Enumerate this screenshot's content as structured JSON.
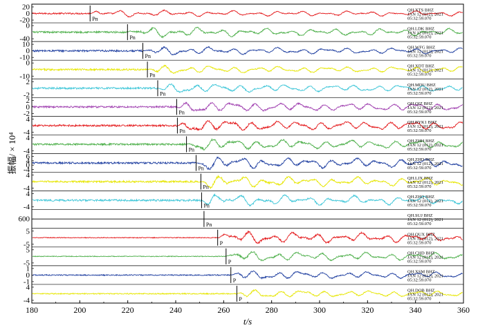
{
  "chart_data": {
    "type": "line",
    "xlabel": "t/s",
    "ylabel": "振幅/ × 10⁴",
    "xlim": [
      180,
      360
    ],
    "xticks": [
      "180",
      "200",
      "220",
      "240",
      "260",
      "280",
      "300",
      "320",
      "340",
      "360"
    ],
    "date_line": "JAN 12 (012), 2021",
    "time_line": "05:32:59.070",
    "series": [
      {
        "name": "QH.XTS BHZ",
        "color": "#e41a1c",
        "phase": "Pn",
        "pick": 204.3,
        "yticks": [
          "20",
          "0",
          "-20"
        ],
        "amp": 1.0,
        "noise": 0.04,
        "burst": 1.0
      },
      {
        "name": "QH.LDK BHZ",
        "color": "#4daf4a",
        "phase": "Pn",
        "pick": 219.9,
        "yticks": [
          "0",
          "-40"
        ],
        "amp": 1.0,
        "noise": 0.05,
        "burst": 1.4
      },
      {
        "name": "QH.WFG BHZ",
        "color": "#1f3fa0",
        "phase": "Pn",
        "pick": 226.3,
        "yticks": [
          "10",
          "0",
          "-10"
        ],
        "amp": 1.0,
        "noise": 0.05,
        "burst": 1.2
      },
      {
        "name": "QH.XDT BHZ",
        "color": "#e6e600",
        "phase": "Pn",
        "pick": 228.2,
        "yticks": [
          "0",
          "-10"
        ],
        "amp": 1.0,
        "noise": 0.05,
        "burst": 1.2
      },
      {
        "name": "QH.MDU BHZ",
        "color": "#3ec6d8",
        "phase": "Pn",
        "pick": 232.5,
        "yticks": [
          "2",
          "-2"
        ],
        "amp": 1.0,
        "noise": 0.05,
        "burst": 1.4
      },
      {
        "name": "QH.QIZ BHZ",
        "color": "#a040b0",
        "phase": "Pn",
        "pick": 240.4,
        "yticks": [
          "2",
          "0",
          "-2"
        ],
        "amp": 1.0,
        "noise": 0.05,
        "burst": 1.6
      },
      {
        "name": "QH.BYK1 BHZ",
        "color": "#e41a1c",
        "phase": "Pn",
        "pick": 240.7,
        "yticks": [
          "4",
          "-4"
        ],
        "amp": 1.0,
        "noise": 0.05,
        "burst": 1.8
      },
      {
        "name": "QH.ZHH BHZ",
        "color": "#4daf4a",
        "phase": "Pn",
        "pick": 244.5,
        "yticks": [
          "4",
          "-4"
        ],
        "amp": 1.0,
        "noise": 0.05,
        "burst": 1.7
      },
      {
        "name": "QH.ZHD BHZ",
        "color": "#1f3fa0",
        "phase": "Pn",
        "pick": 248.5,
        "yticks": [
          "6",
          "4",
          "0",
          "-4"
        ],
        "amp": 1.0,
        "noise": 0.05,
        "burst": 1.8
      },
      {
        "name": "QH.LJX BHZ",
        "color": "#e6e600",
        "phase": "Pn",
        "pick": 250.5,
        "yticks": [
          "4",
          "-4"
        ],
        "amp": 1.0,
        "noise": 0.05,
        "burst": 1.7
      },
      {
        "name": "QH.ZHQ BHZ",
        "color": "#3ec6d8",
        "phase": "Pn",
        "pick": 250.8,
        "yticks": [
          "4",
          "-4"
        ],
        "amp": 1.0,
        "noise": 0.05,
        "burst": 1.7
      },
      {
        "name": "QH.SUJ BHZ",
        "color": "#000000",
        "phase": "Pn",
        "pick": 251.8,
        "yticks": [
          "600"
        ],
        "amp": 0.0,
        "noise": 0.0,
        "burst": 0.0
      },
      {
        "name": "QH.QUX BHZ",
        "color": "#e41a1c",
        "phase": "P",
        "pick": 257.5,
        "yticks": [
          "5",
          "-5"
        ],
        "amp": 1.0,
        "noise": 0.02,
        "burst": 1.8
      },
      {
        "name": "QH.CHD BHZ",
        "color": "#4daf4a",
        "phase": "P",
        "pick": 261.0,
        "yticks": [
          "5",
          "-5"
        ],
        "amp": 1.0,
        "noise": 0.02,
        "burst": 1.5
      },
      {
        "name": "QH.XSM BHZ",
        "color": "#1f3fa0",
        "phase": "P",
        "pick": 263.0,
        "yticks": [
          "1",
          "0",
          "-1"
        ],
        "amp": 1.0,
        "noise": 0.03,
        "burst": 1.3
      },
      {
        "name": "QH.DOB BHZ",
        "color": "#e6e600",
        "phase": "P",
        "pick": 265.5,
        "yticks": [
          "4",
          "-4"
        ],
        "amp": 1.0,
        "noise": 0.03,
        "burst": 1.2
      }
    ]
  }
}
